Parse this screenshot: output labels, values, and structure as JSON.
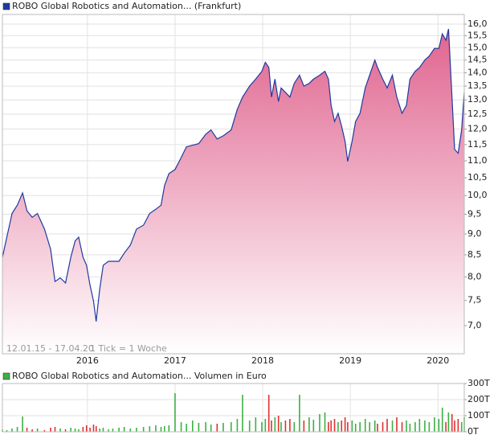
{
  "chart_data": [
    {
      "type": "area",
      "annotations": [
        "12.01.15 - 17.04.20",
        "1 Tick = 1 Woche"
      ],
      "log_scale": true,
      "grid": true,
      "legend": "top-left",
      "xlim": [
        2015.03,
        2020.3
      ],
      "xticks": [
        2016,
        2017,
        2018,
        2019,
        2020
      ],
      "ylim": [
        6.48,
        16.43
      ],
      "yticks": [
        {
          "value": 7,
          "label": "7,0"
        },
        {
          "value": 7.5,
          "label": "7,5"
        },
        {
          "value": 8,
          "label": "8,0"
        },
        {
          "value": 8.5,
          "label": "8,5"
        },
        {
          "value": 9,
          "label": "9,0"
        },
        {
          "value": 9.5,
          "label": "9,5"
        },
        {
          "value": 10,
          "label": "10,0"
        },
        {
          "value": 10.5,
          "label": "10,5"
        },
        {
          "value": 11,
          "label": "11,0"
        },
        {
          "value": 11.5,
          "label": "11,5"
        },
        {
          "value": 12,
          "label": "12,0"
        },
        {
          "value": 12.5,
          "label": "12,5"
        },
        {
          "value": 13,
          "label": "13,0"
        },
        {
          "value": 13.5,
          "label": "13,5"
        },
        {
          "value": 14,
          "label": "14,0"
        },
        {
          "value": 14.5,
          "label": "14,5"
        },
        {
          "value": 15,
          "label": "15,0"
        },
        {
          "value": 15.5,
          "label": "15,5"
        },
        {
          "value": 16,
          "label": "16,0"
        }
      ],
      "x": [
        2015.03,
        2015.08,
        2015.14,
        2015.2,
        2015.26,
        2015.31,
        2015.37,
        2015.43,
        2015.51,
        2015.58,
        2015.63,
        2015.69,
        2015.75,
        2015.81,
        2015.86,
        2015.9,
        2015.95,
        2015.99,
        2016.03,
        2016.07,
        2016.1,
        2016.14,
        2016.18,
        2016.24,
        2016.29,
        2016.36,
        2016.42,
        2016.49,
        2016.56,
        2016.64,
        2016.71,
        2016.78,
        2016.84,
        2016.88,
        2016.93,
        2017.0,
        2017.07,
        2017.13,
        2017.2,
        2017.27,
        2017.35,
        2017.41,
        2017.48,
        2017.55,
        2017.64,
        2017.71,
        2017.77,
        2017.85,
        2017.92,
        2017.99,
        2018.03,
        2018.07,
        2018.1,
        2018.14,
        2018.18,
        2018.21,
        2018.26,
        2018.31,
        2018.36,
        2018.42,
        2018.47,
        2018.53,
        2018.58,
        2018.65,
        2018.71,
        2018.75,
        2018.78,
        2018.82,
        2018.86,
        2018.9,
        2018.94,
        2018.97,
        2019.02,
        2019.06,
        2019.11,
        2019.17,
        2019.22,
        2019.28,
        2019.31,
        2019.37,
        2019.42,
        2019.48,
        2019.53,
        2019.59,
        2019.64,
        2019.68,
        2019.74,
        2019.79,
        2019.85,
        2019.9,
        2019.96,
        2020.01,
        2020.05,
        2020.09,
        2020.12,
        2020.16,
        2020.19,
        2020.23,
        2020.27,
        2020.3
      ],
      "series": [
        {
          "name": "ROBO Global Robotics and Automation... (Frankfurt)",
          "color": "#1f3aa0",
          "fill": "#e0648f",
          "values": [
            8.44,
            8.92,
            9.52,
            9.74,
            10.07,
            9.59,
            9.42,
            9.52,
            9.12,
            8.63,
            7.9,
            7.98,
            7.87,
            8.44,
            8.83,
            8.92,
            8.44,
            8.26,
            7.82,
            7.48,
            7.08,
            7.73,
            8.26,
            8.35,
            8.35,
            8.35,
            8.54,
            8.73,
            9.12,
            9.22,
            9.52,
            9.63,
            9.74,
            10.28,
            10.62,
            10.74,
            11.1,
            11.43,
            11.48,
            11.53,
            11.83,
            11.97,
            11.68,
            11.78,
            11.97,
            12.67,
            13.1,
            13.5,
            13.76,
            14.06,
            14.41,
            14.21,
            13.1,
            13.76,
            12.94,
            13.43,
            13.27,
            13.1,
            13.6,
            13.91,
            13.5,
            13.6,
            13.76,
            13.91,
            14.06,
            13.76,
            12.81,
            12.25,
            12.53,
            12.1,
            11.6,
            10.98,
            11.6,
            12.25,
            12.53,
            13.43,
            13.91,
            14.5,
            14.21,
            13.76,
            13.43,
            13.91,
            13.1,
            12.53,
            12.81,
            13.76,
            14.06,
            14.21,
            14.5,
            14.66,
            14.97,
            14.97,
            15.58,
            15.31,
            15.79,
            13.1,
            11.35,
            11.23,
            11.97,
            13.27
          ]
        }
      ]
    },
    {
      "type": "bar",
      "grid": true,
      "legend": "top-left",
      "xlim": [
        2015.03,
        2020.3
      ],
      "ylim": [
        0,
        300000
      ],
      "yticks": [
        {
          "value": 0,
          "label": "0T"
        },
        {
          "value": 100000,
          "label": "100T"
        },
        {
          "value": 200000,
          "label": "200T"
        },
        {
          "value": 300000,
          "label": "300T"
        }
      ],
      "up_color": "#3cb043",
      "down_color": "#e03030",
      "x": [
        2015.03,
        2015.08,
        2015.14,
        2015.2,
        2015.26,
        2015.31,
        2015.37,
        2015.43,
        2015.51,
        2015.58,
        2015.63,
        2015.69,
        2015.75,
        2015.81,
        2015.86,
        2015.9,
        2015.95,
        2015.99,
        2016.03,
        2016.07,
        2016.1,
        2016.14,
        2016.18,
        2016.24,
        2016.29,
        2016.36,
        2016.42,
        2016.49,
        2016.56,
        2016.64,
        2016.71,
        2016.78,
        2016.84,
        2016.88,
        2016.93,
        2017.0,
        2017.07,
        2017.13,
        2017.2,
        2017.27,
        2017.35,
        2017.41,
        2017.48,
        2017.55,
        2017.64,
        2017.71,
        2017.77,
        2017.85,
        2017.92,
        2017.99,
        2018.03,
        2018.07,
        2018.1,
        2018.14,
        2018.18,
        2018.21,
        2018.26,
        2018.31,
        2018.36,
        2018.42,
        2018.47,
        2018.53,
        2018.58,
        2018.65,
        2018.71,
        2018.75,
        2018.78,
        2018.82,
        2018.86,
        2018.9,
        2018.94,
        2018.97,
        2019.02,
        2019.06,
        2019.11,
        2019.17,
        2019.22,
        2019.28,
        2019.31,
        2019.37,
        2019.42,
        2019.48,
        2019.53,
        2019.59,
        2019.64,
        2019.68,
        2019.74,
        2019.79,
        2019.85,
        2019.9,
        2019.96,
        2020.01,
        2020.05,
        2020.09,
        2020.12,
        2020.16,
        2020.19,
        2020.23,
        2020.27,
        2020.3
      ],
      "series": [
        {
          "name": "ROBO Global Robotics and Automation... Volumen in Euro",
          "color": "#3cb043",
          "values": [
            15000,
            10000,
            20000,
            30000,
            95000,
            25000,
            15000,
            20000,
            10000,
            25000,
            30000,
            20000,
            15000,
            25000,
            20000,
            15000,
            30000,
            40000,
            25000,
            45000,
            35000,
            20000,
            25000,
            15000,
            20000,
            25000,
            30000,
            20000,
            25000,
            30000,
            35000,
            40000,
            30000,
            35000,
            40000,
            240000,
            60000,
            50000,
            70000,
            55000,
            60000,
            45000,
            50000,
            55000,
            60000,
            80000,
            230000,
            70000,
            90000,
            60000,
            80000,
            230000,
            70000,
            90000,
            100000,
            60000,
            70000,
            80000,
            60000,
            230000,
            70000,
            90000,
            75000,
            110000,
            120000,
            60000,
            70000,
            80000,
            60000,
            70000,
            90000,
            60000,
            70000,
            50000,
            60000,
            80000,
            60000,
            70000,
            50000,
            60000,
            80000,
            70000,
            90000,
            60000,
            70000,
            50000,
            60000,
            80000,
            70000,
            60000,
            90000,
            80000,
            150000,
            60000,
            120000,
            110000,
            70000,
            80000,
            60000,
            90000
          ]
        }
      ]
    }
  ]
}
